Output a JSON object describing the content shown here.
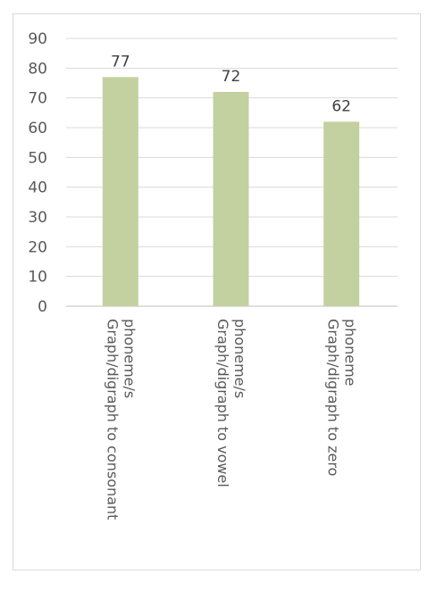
{
  "chart_data": {
    "type": "bar",
    "categories": [
      [
        "Graph/digraph to consonant",
        "phoneme/s"
      ],
      [
        "Graph/digraph to vowel",
        "phoneme/s"
      ],
      [
        "Graph/digraph to zero",
        "phoneme"
      ]
    ],
    "values": [
      77,
      72,
      62
    ],
    "data_labels": [
      "77",
      "72",
      "62"
    ],
    "yticks": [
      "0",
      "10",
      "20",
      "30",
      "40",
      "50",
      "60",
      "70",
      "80",
      "90"
    ],
    "ylim": [
      0,
      90
    ],
    "title": "",
    "xlabel": "",
    "ylabel": "",
    "grid": true,
    "legend": "none",
    "bar_color": "#c3d1a0",
    "grid_color": "#d9d9d9",
    "axis_color": "#bfbfbf"
  }
}
